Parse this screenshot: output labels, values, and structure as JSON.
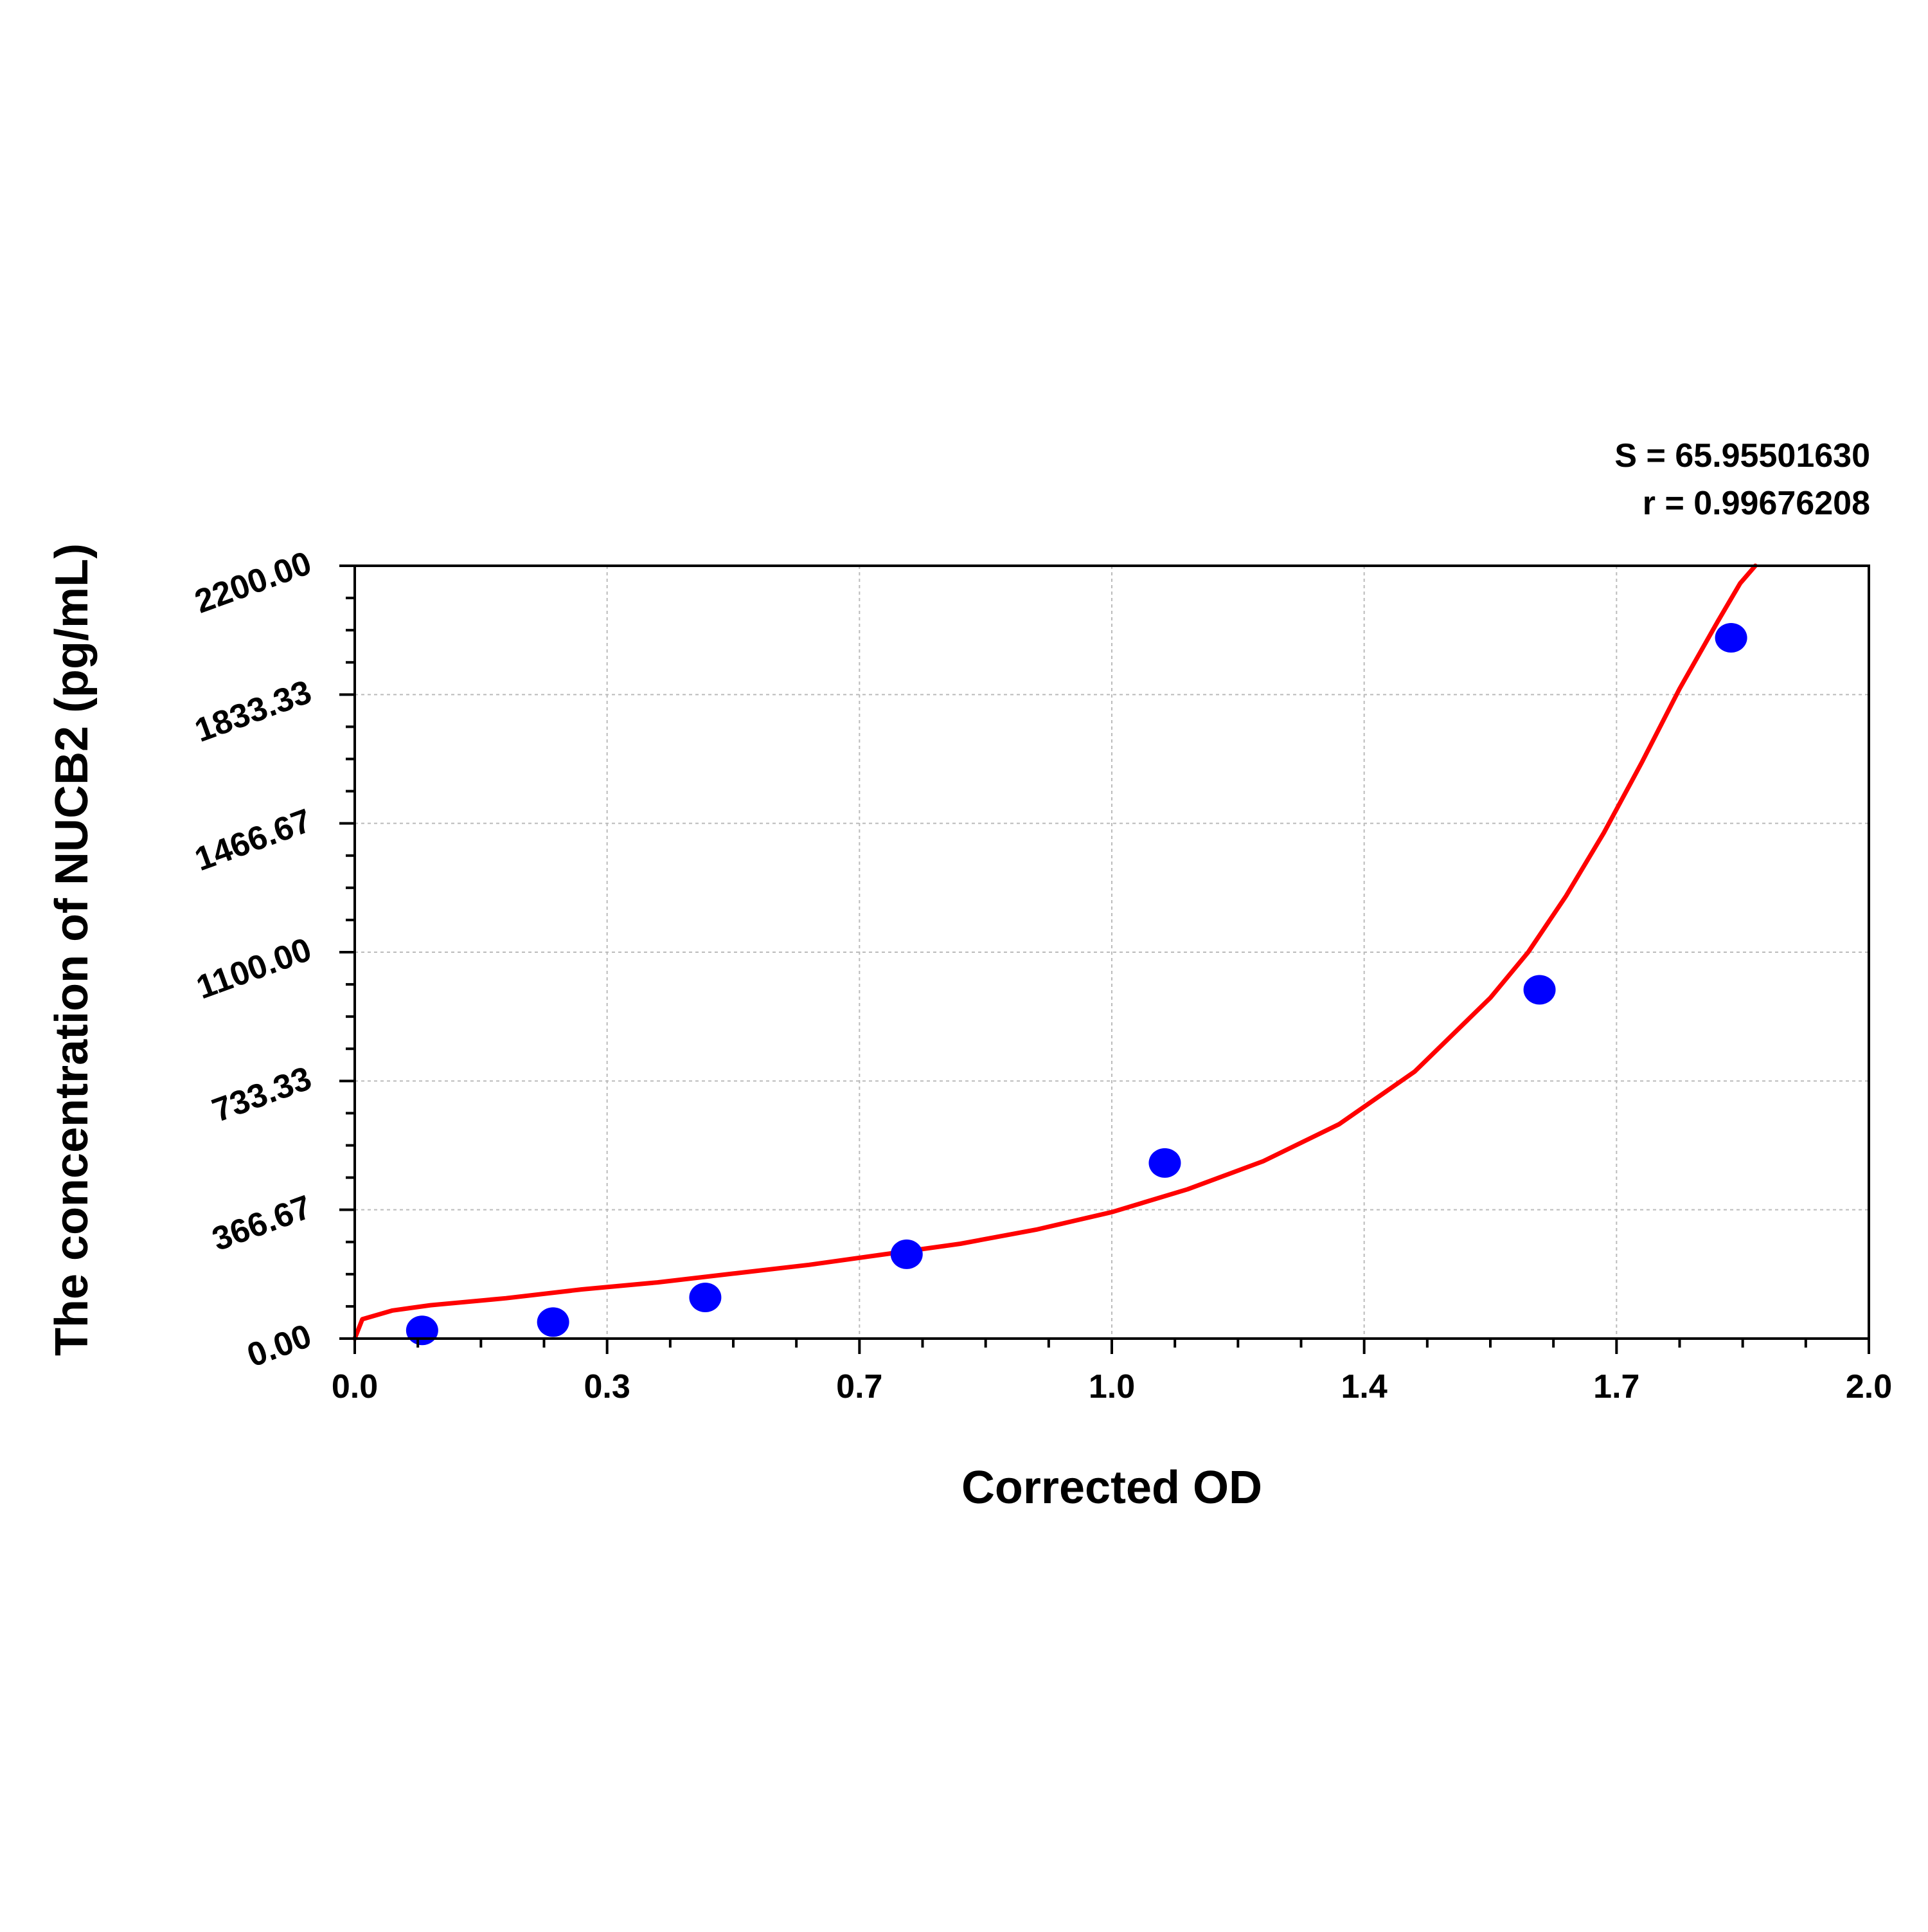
{
  "chart_data": {
    "type": "scatter",
    "title": "",
    "xlabel": "Corrected OD",
    "ylabel": "The concentration of NUCB2 (pg/mL)",
    "xlim": [
      0.0,
      2.0
    ],
    "ylim": [
      0.0,
      2200.0
    ],
    "x_ticks": [
      "0.0",
      "0.3",
      "0.7",
      "1.0",
      "1.4",
      "1.7",
      "2.0"
    ],
    "y_ticks": [
      "0.00",
      "366.67",
      "733.33",
      "1100.00",
      "1466.67",
      "1833.33",
      "2200.00"
    ],
    "grid": true,
    "annotations": [
      "S = 65.95501630",
      "r = 0.99676208"
    ],
    "series": [
      {
        "kind": "points",
        "x": [
          0.089,
          0.262,
          0.463,
          0.729,
          1.07,
          1.565,
          1.818
        ],
        "y": [
          23.4,
          46.9,
          117.2,
          240.0,
          500.0,
          993.0,
          1995.0
        ]
      },
      {
        "kind": "curve",
        "x": [
          0.0,
          0.01,
          0.05,
          0.1,
          0.2,
          0.3,
          0.4,
          0.5,
          0.6,
          0.7,
          0.8,
          0.9,
          1.0,
          1.1,
          1.2,
          1.3,
          1.4,
          1.5,
          1.55,
          1.6,
          1.65,
          1.7,
          1.75,
          1.8,
          1.83,
          1.85
        ],
        "y": [
          0,
          55,
          80,
          95,
          115,
          140,
          160,
          185,
          210,
          240,
          270,
          310,
          360,
          425,
          505,
          610,
          760,
          970,
          1100,
          1260,
          1440,
          1640,
          1850,
          2040,
          2150,
          2200
        ]
      }
    ],
    "colors": {
      "points": "#0000ff",
      "curve": "#ff0000",
      "grid": "#bbbbbb"
    }
  }
}
